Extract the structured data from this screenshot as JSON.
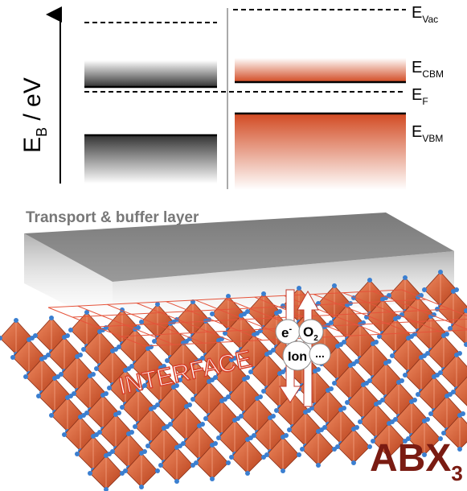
{
  "axis_label": {
    "main": "E",
    "sub": "B",
    "rest": " / eV"
  },
  "levels": {
    "vacuum": {
      "main": "E",
      "sub": "Vac"
    },
    "cbm": {
      "main": "E",
      "sub": "CBM"
    },
    "fermi": {
      "main": "E",
      "sub": "F"
    },
    "vbm": {
      "main": "E",
      "sub": "VBM"
    }
  },
  "layer_label": "Transport & buffer layer",
  "interface_label": "INTERFACE",
  "species": {
    "electron": {
      "main": "e",
      "sup": "-"
    },
    "oxygen": {
      "main": "O",
      "sub": "2"
    },
    "ion": "Ion",
    "more": "..."
  },
  "material": {
    "main": "ABX",
    "sub": "3"
  }
}
